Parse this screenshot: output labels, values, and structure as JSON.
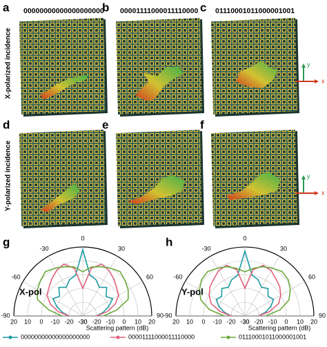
{
  "panels": [
    {
      "letter": "a",
      "code": "00000000000000000000"
    },
    {
      "letter": "b",
      "code": "00001111000011110000"
    },
    {
      "letter": "c",
      "code": "01110001011000001001"
    },
    {
      "letter": "d"
    },
    {
      "letter": "e"
    },
    {
      "letter": "f"
    }
  ],
  "row_labels": [
    "X-polarized incidence",
    "Y-polarized incidence"
  ],
  "axis_icon": {
    "y": "y",
    "x": "x"
  },
  "chart_data": [
    {
      "type": "polar",
      "letter": "g",
      "label": "X-pol",
      "xlabel": "Scattering pattern (dB)",
      "theta": [
        -90,
        -80,
        -70,
        -60,
        -50,
        -40,
        -30,
        -20,
        -10,
        0,
        10,
        20,
        30,
        40,
        50,
        60,
        70,
        80,
        90
      ],
      "thetaticks": [
        -90,
        -60,
        -30,
        0,
        30,
        60,
        90
      ],
      "rlim": [
        -30,
        20
      ],
      "rticks": [
        20,
        10,
        0,
        -10,
        -20,
        -30
      ],
      "series": [
        {
          "name": "00000000000000000000",
          "color": "#1a9aa0",
          "values": [
            -20,
            -15,
            -10,
            -5,
            -8,
            -3,
            -6,
            -2,
            0,
            18,
            0,
            -2,
            -6,
            -3,
            -8,
            -5,
            -10,
            -15,
            -20
          ]
        },
        {
          "name": "00001111000011110000",
          "color": "#e0607a",
          "values": [
            -20,
            -12,
            -5,
            0,
            2,
            5,
            8,
            10,
            5,
            -10,
            5,
            10,
            8,
            5,
            2,
            0,
            -5,
            -12,
            -20
          ]
        },
        {
          "name": "01110001011000001001",
          "color": "#6aa83a",
          "values": [
            -15,
            -5,
            5,
            8,
            10,
            12,
            10,
            8,
            6,
            2,
            6,
            8,
            10,
            12,
            10,
            8,
            5,
            -5,
            -15
          ]
        }
      ]
    },
    {
      "type": "polar",
      "letter": "h",
      "label": "Y-pol",
      "xlabel": "Scattering pattern (dB)",
      "theta": [
        -90,
        -80,
        -70,
        -60,
        -50,
        -40,
        -30,
        -20,
        -10,
        0,
        10,
        20,
        30,
        40,
        50,
        60,
        70,
        80,
        90
      ],
      "thetaticks": [
        -90,
        -60,
        -30,
        0,
        30,
        60,
        90
      ],
      "rlim": [
        -30,
        20
      ],
      "rticks": [
        20,
        10,
        0,
        -10,
        -20,
        -30
      ],
      "series": [
        {
          "name": "00000000000000000000",
          "color": "#1a9aa0",
          "values": [
            -20,
            -15,
            -10,
            -6,
            -8,
            -4,
            -6,
            -2,
            0,
            17,
            0,
            -2,
            -6,
            -4,
            -8,
            -6,
            -10,
            -15,
            -20
          ]
        },
        {
          "name": "00001111000011110000",
          "color": "#e0607a",
          "values": [
            -20,
            -12,
            -4,
            0,
            3,
            5,
            8,
            9,
            4,
            -10,
            4,
            9,
            8,
            5,
            3,
            0,
            -4,
            -12,
            -20
          ]
        },
        {
          "name": "01110001011000001001",
          "color": "#6aa83a",
          "values": [
            -15,
            -4,
            4,
            8,
            11,
            12,
            10,
            8,
            5,
            2,
            5,
            8,
            10,
            12,
            11,
            8,
            4,
            -4,
            -15
          ]
        }
      ]
    }
  ]
}
